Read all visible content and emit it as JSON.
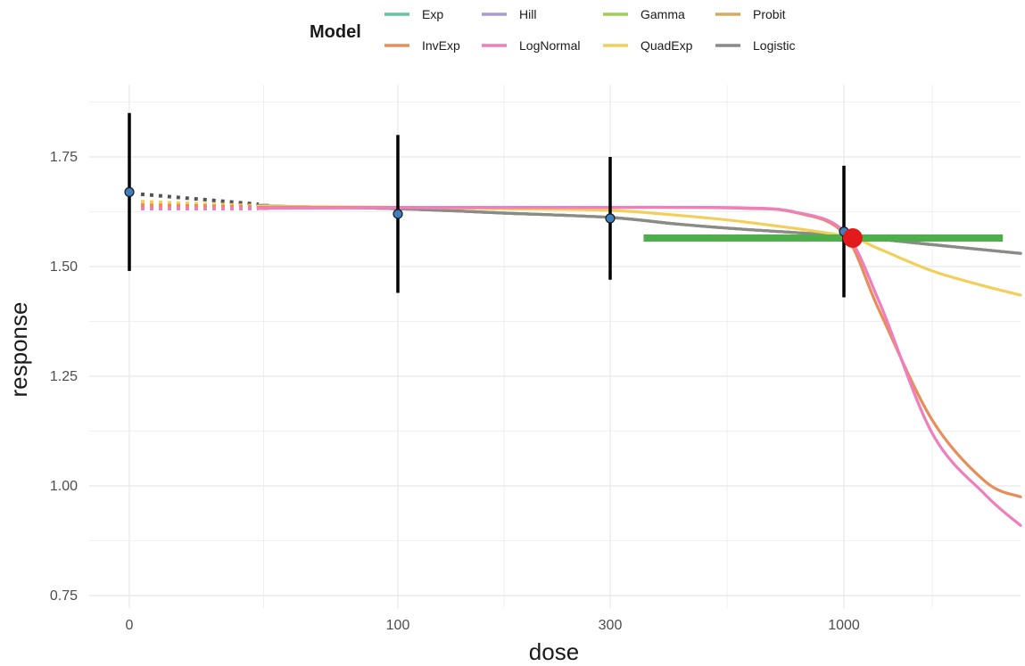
{
  "chart_data": {
    "type": "line",
    "xlabel": "dose",
    "ylabel": "response",
    "x_scale": "pseudo-log",
    "x_ticks": [
      0,
      100,
      300,
      1000
    ],
    "x_tick_labels": [
      "0",
      "100",
      "300",
      "1000"
    ],
    "xlim": [
      0,
      2000
    ],
    "ylim": [
      0.75,
      1.85
    ],
    "y_ticks": [
      0.75,
      1.0,
      1.25,
      1.5,
      1.75
    ],
    "y_tick_labels": [
      "0.75",
      "1.00",
      "1.25",
      "1.50",
      "1.75"
    ],
    "grid": true,
    "legend": {
      "title": "Model",
      "position": "top",
      "entries": [
        "Exp",
        "InvExp",
        "Hill",
        "LogNormal",
        "Gamma",
        "QuadExp",
        "Probit",
        "Logistic"
      ]
    },
    "observations": [
      {
        "dose": 0,
        "mean": 1.67,
        "lower": 1.49,
        "upper": 1.85
      },
      {
        "dose": 100,
        "mean": 1.62,
        "lower": 1.44,
        "upper": 1.8
      },
      {
        "dose": 300,
        "mean": 1.61,
        "lower": 1.47,
        "upper": 1.75
      },
      {
        "dose": 1000,
        "mean": 1.58,
        "lower": 1.43,
        "upper": 1.73
      }
    ],
    "bmd": {
      "dose": 1050,
      "response": 1.565,
      "lower": 400,
      "upper": 1900
    },
    "series": [
      {
        "name": "Exp",
        "color": "#66c2a5",
        "x": [
          25,
          50,
          100,
          200,
          300,
          500,
          700,
          1000,
          1500,
          2000
        ],
        "y": [
          1.64,
          1.638,
          1.632,
          1.622,
          1.612,
          1.597,
          1.585,
          1.57,
          1.55,
          1.53
        ]
      },
      {
        "name": "InvExp",
        "color": "#e88d5a",
        "x": [
          25,
          50,
          100,
          200,
          300,
          500,
          700,
          850,
          1000,
          1200,
          1500,
          1800,
          2000
        ],
        "y": [
          1.635,
          1.635,
          1.635,
          1.635,
          1.635,
          1.635,
          1.633,
          1.624,
          1.575,
          1.4,
          1.15,
          1.01,
          0.975
        ]
      },
      {
        "name": "Hill",
        "color": "#a99bd0",
        "x": [
          25,
          50,
          100,
          200,
          300,
          500,
          700,
          1000,
          1500,
          2000
        ],
        "y": [
          1.64,
          1.638,
          1.632,
          1.622,
          1.612,
          1.597,
          1.585,
          1.57,
          1.55,
          1.53
        ]
      },
      {
        "name": "LogNormal",
        "color": "#ef7ebc",
        "x": [
          25,
          50,
          100,
          200,
          300,
          500,
          700,
          850,
          1000,
          1200,
          1500,
          1800,
          2000
        ],
        "y": [
          1.632,
          1.633,
          1.634,
          1.635,
          1.635,
          1.635,
          1.634,
          1.625,
          1.58,
          1.42,
          1.12,
          0.98,
          0.91
        ]
      },
      {
        "name": "Gamma",
        "color": "#9fcf5a",
        "x": [
          25,
          50,
          100,
          200,
          300,
          500,
          700,
          1000,
          1500,
          2000
        ],
        "y": [
          1.64,
          1.638,
          1.632,
          1.622,
          1.612,
          1.597,
          1.585,
          1.57,
          1.55,
          1.53
        ]
      },
      {
        "name": "QuadExp",
        "color": "#f2cf5b",
        "x": [
          25,
          50,
          100,
          200,
          300,
          500,
          700,
          1000,
          1200,
          1500,
          1800,
          2000
        ],
        "y": [
          1.638,
          1.637,
          1.635,
          1.632,
          1.628,
          1.617,
          1.602,
          1.57,
          1.54,
          1.49,
          1.455,
          1.435
        ]
      },
      {
        "name": "Probit",
        "color": "#d8a865",
        "x": [
          25,
          50,
          100,
          200,
          300,
          500,
          700,
          1000,
          1500,
          2000
        ],
        "y": [
          1.64,
          1.638,
          1.632,
          1.622,
          1.612,
          1.597,
          1.585,
          1.57,
          1.55,
          1.53
        ]
      },
      {
        "name": "Logistic",
        "color": "#8a8a8a",
        "x": [
          25,
          50,
          100,
          200,
          300,
          500,
          700,
          1000,
          1500,
          2000
        ],
        "y": [
          1.64,
          1.638,
          1.632,
          1.622,
          1.612,
          1.597,
          1.585,
          1.57,
          1.55,
          1.53
        ]
      }
    ],
    "dotted_segments": [
      {
        "color": "#555555",
        "y": [
          1.665,
          1.642
        ]
      },
      {
        "color": "#f2cf5b",
        "y": [
          1.648,
          1.638
        ]
      },
      {
        "color": "#e88d5a",
        "y": [
          1.64,
          1.636
        ]
      },
      {
        "color": "#ef7ebc",
        "y": [
          1.632,
          1.632
        ]
      }
    ],
    "colors": {
      "errorbar": "#000000",
      "point_fill": "#3e7fbf",
      "bmd_point": "#e31a1c",
      "bmd_interval": "#4daf4a",
      "grid": "#ebebeb"
    }
  }
}
